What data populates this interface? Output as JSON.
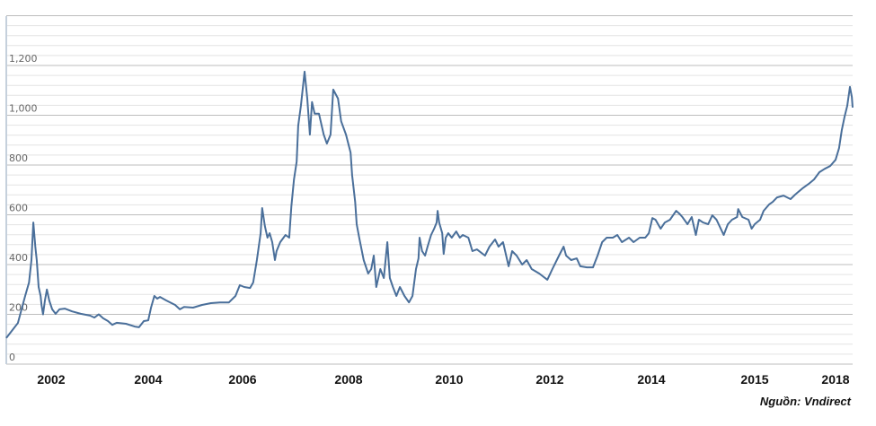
{
  "chart_data": {
    "type": "line",
    "title": "",
    "xlabel": "",
    "ylabel": "",
    "ylim": [
      0,
      1400
    ],
    "xlim": [
      2001.07,
      2018.63
    ],
    "y_ticks": [
      0,
      200,
      400,
      600,
      800,
      1000,
      1200
    ],
    "y_tick_labels": [
      "0",
      "200",
      "400",
      "600",
      "800",
      "1,000",
      "1,200"
    ],
    "minor_grid_step": 40,
    "grid": true,
    "x_tick_labels": [
      "2002",
      "2004",
      "2006",
      "2008",
      "2010",
      "2012",
      "2014",
      "2015",
      "2018"
    ],
    "line_color": "#4a6f9a",
    "series": [
      {
        "points": [
          [
            2001.07,
            105
          ],
          [
            2001.17,
            130
          ],
          [
            2001.31,
            165
          ],
          [
            2001.41,
            238
          ],
          [
            2001.46,
            274
          ],
          [
            2001.54,
            328
          ],
          [
            2001.59,
            418
          ],
          [
            2001.63,
            569
          ],
          [
            2001.67,
            472
          ],
          [
            2001.7,
            418
          ],
          [
            2001.74,
            310
          ],
          [
            2001.78,
            274
          ],
          [
            2001.8,
            238
          ],
          [
            2001.83,
            200
          ],
          [
            2001.87,
            256
          ],
          [
            2001.91,
            300
          ],
          [
            2001.96,
            256
          ],
          [
            2002.02,
            220
          ],
          [
            2002.09,
            202
          ],
          [
            2002.17,
            220
          ],
          [
            2002.28,
            223
          ],
          [
            2002.43,
            212
          ],
          [
            2002.61,
            202
          ],
          [
            2002.8,
            195
          ],
          [
            2002.89,
            187
          ],
          [
            2002.98,
            200
          ],
          [
            2003.07,
            184
          ],
          [
            2003.17,
            173
          ],
          [
            2003.26,
            158
          ],
          [
            2003.35,
            166
          ],
          [
            2003.54,
            162
          ],
          [
            2003.72,
            151
          ],
          [
            2003.81,
            148
          ],
          [
            2003.91,
            173
          ],
          [
            2004.0,
            176
          ],
          [
            2004.06,
            227
          ],
          [
            2004.13,
            274
          ],
          [
            2004.19,
            263
          ],
          [
            2004.25,
            270
          ],
          [
            2004.38,
            256
          ],
          [
            2004.57,
            238
          ],
          [
            2004.67,
            220
          ],
          [
            2004.76,
            230
          ],
          [
            2004.95,
            227
          ],
          [
            2005.14,
            238
          ],
          [
            2005.33,
            245
          ],
          [
            2005.52,
            248
          ],
          [
            2005.71,
            248
          ],
          [
            2005.85,
            274
          ],
          [
            2005.94,
            317
          ],
          [
            2006.03,
            310
          ],
          [
            2006.14,
            306
          ],
          [
            2006.2,
            328
          ],
          [
            2006.27,
            418
          ],
          [
            2006.34,
            526
          ],
          [
            2006.37,
            627
          ],
          [
            2006.42,
            555
          ],
          [
            2006.47,
            508
          ],
          [
            2006.51,
            526
          ],
          [
            2006.56,
            490
          ],
          [
            2006.61,
            418
          ],
          [
            2006.64,
            454
          ],
          [
            2006.71,
            490
          ],
          [
            2006.81,
            519
          ],
          [
            2006.88,
            508
          ],
          [
            2006.92,
            634
          ],
          [
            2006.97,
            742
          ],
          [
            2007.02,
            814
          ],
          [
            2007.05,
            958
          ],
          [
            2007.1,
            1038
          ],
          [
            2007.17,
            1175
          ],
          [
            2007.22,
            1067
          ],
          [
            2007.27,
            922
          ],
          [
            2007.31,
            1053
          ],
          [
            2007.36,
            1006
          ],
          [
            2007.44,
            1006
          ],
          [
            2007.53,
            922
          ],
          [
            2007.59,
            886
          ],
          [
            2007.66,
            922
          ],
          [
            2007.71,
            1103
          ],
          [
            2007.8,
            1067
          ],
          [
            2007.86,
            976
          ],
          [
            2007.95,
            922
          ],
          [
            2008.04,
            850
          ],
          [
            2008.07,
            760
          ],
          [
            2008.13,
            652
          ],
          [
            2008.16,
            562
          ],
          [
            2008.21,
            508
          ],
          [
            2008.3,
            418
          ],
          [
            2008.39,
            364
          ],
          [
            2008.45,
            382
          ],
          [
            2008.5,
            436
          ],
          [
            2008.55,
            310
          ],
          [
            2008.63,
            382
          ],
          [
            2008.7,
            346
          ],
          [
            2008.77,
            490
          ],
          [
            2008.82,
            346
          ],
          [
            2008.88,
            310
          ],
          [
            2008.95,
            274
          ],
          [
            2009.02,
            310
          ],
          [
            2009.11,
            274
          ],
          [
            2009.2,
            248
          ],
          [
            2009.27,
            274
          ],
          [
            2009.34,
            382
          ],
          [
            2009.39,
            425
          ],
          [
            2009.41,
            508
          ],
          [
            2009.46,
            454
          ],
          [
            2009.52,
            436
          ],
          [
            2009.57,
            472
          ],
          [
            2009.64,
            519
          ],
          [
            2009.7,
            544
          ],
          [
            2009.75,
            569
          ],
          [
            2009.77,
            616
          ],
          [
            2009.8,
            569
          ],
          [
            2009.86,
            526
          ],
          [
            2009.89,
            443
          ],
          [
            2009.93,
            508
          ],
          [
            2009.98,
            526
          ],
          [
            2010.05,
            508
          ],
          [
            2010.14,
            533
          ],
          [
            2010.21,
            508
          ],
          [
            2010.27,
            519
          ],
          [
            2010.38,
            508
          ],
          [
            2010.46,
            454
          ],
          [
            2010.55,
            461
          ],
          [
            2010.71,
            436
          ],
          [
            2010.8,
            472
          ],
          [
            2010.91,
            501
          ],
          [
            2010.98,
            472
          ],
          [
            2011.07,
            490
          ],
          [
            2011.18,
            393
          ],
          [
            2011.25,
            454
          ],
          [
            2011.34,
            436
          ],
          [
            2011.45,
            400
          ],
          [
            2011.54,
            418
          ],
          [
            2011.64,
            382
          ],
          [
            2011.79,
            364
          ],
          [
            2011.95,
            339
          ],
          [
            2012.05,
            382
          ],
          [
            2012.18,
            436
          ],
          [
            2012.27,
            472
          ],
          [
            2012.32,
            436
          ],
          [
            2012.42,
            418
          ],
          [
            2012.53,
            425
          ],
          [
            2012.6,
            393
          ],
          [
            2012.73,
            389
          ],
          [
            2012.85,
            389
          ],
          [
            2012.94,
            436
          ],
          [
            2013.03,
            490
          ],
          [
            2013.12,
            508
          ],
          [
            2013.24,
            508
          ],
          [
            2013.33,
            519
          ],
          [
            2013.42,
            490
          ],
          [
            2013.56,
            508
          ],
          [
            2013.65,
            490
          ],
          [
            2013.77,
            508
          ],
          [
            2013.88,
            508
          ],
          [
            2013.95,
            526
          ],
          [
            2014.01,
            587
          ],
          [
            2014.04,
            580
          ],
          [
            2014.09,
            544
          ],
          [
            2014.13,
            569
          ],
          [
            2014.18,
            580
          ],
          [
            2014.24,
            616
          ],
          [
            2014.27,
            605
          ],
          [
            2014.3,
            591
          ],
          [
            2014.35,
            562
          ],
          [
            2014.39,
            591
          ],
          [
            2014.43,
            519
          ],
          [
            2014.46,
            580
          ],
          [
            2014.5,
            569
          ],
          [
            2014.55,
            562
          ],
          [
            2014.59,
            598
          ],
          [
            2014.63,
            580
          ],
          [
            2014.7,
            519
          ],
          [
            2014.74,
            562
          ],
          [
            2014.78,
            580
          ],
          [
            2014.83,
            591
          ],
          [
            2014.84,
            623
          ],
          [
            2014.88,
            591
          ],
          [
            2014.94,
            580
          ],
          [
            2014.97,
            544
          ],
          [
            2015.0,
            562
          ],
          [
            2015.2,
            580
          ],
          [
            2015.33,
            616
          ],
          [
            2015.53,
            641
          ],
          [
            2015.67,
            652
          ],
          [
            2015.83,
            670
          ],
          [
            2016.07,
            677
          ],
          [
            2016.33,
            663
          ],
          [
            2016.5,
            681
          ],
          [
            2016.77,
            706
          ],
          [
            2017.0,
            724
          ],
          [
            2017.2,
            742
          ],
          [
            2017.4,
            771
          ],
          [
            2017.6,
            785
          ],
          [
            2017.8,
            796
          ],
          [
            2018.0,
            821
          ],
          [
            2018.13,
            868
          ],
          [
            2018.23,
            940
          ],
          [
            2018.33,
            994
          ],
          [
            2018.43,
            1038
          ],
          [
            2018.53,
            1114
          ],
          [
            2018.6,
            1074
          ],
          [
            2018.63,
            1031
          ]
        ]
      }
    ]
  },
  "source": "Nguồn: Vndirect"
}
